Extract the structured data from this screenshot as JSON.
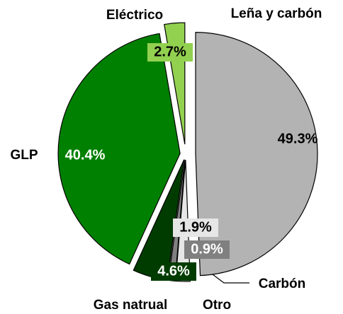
{
  "chart_data": {
    "type": "pie",
    "categories": [
      "Leña y carbón",
      "Carbón",
      "Otro",
      "Gas natrual",
      "GLP",
      "Eléctrico"
    ],
    "values": [
      49.3,
      1.9,
      0.9,
      4.6,
      40.4,
      2.7
    ],
    "value_labels": [
      "49.3%",
      "1.9%",
      "0.9%",
      "4.6%",
      "40.4%",
      "2.7%"
    ],
    "colors": [
      "#b3b3b3",
      "#e6e6e6",
      "#808080",
      "#003c00",
      "#008000",
      "#92d050"
    ]
  }
}
